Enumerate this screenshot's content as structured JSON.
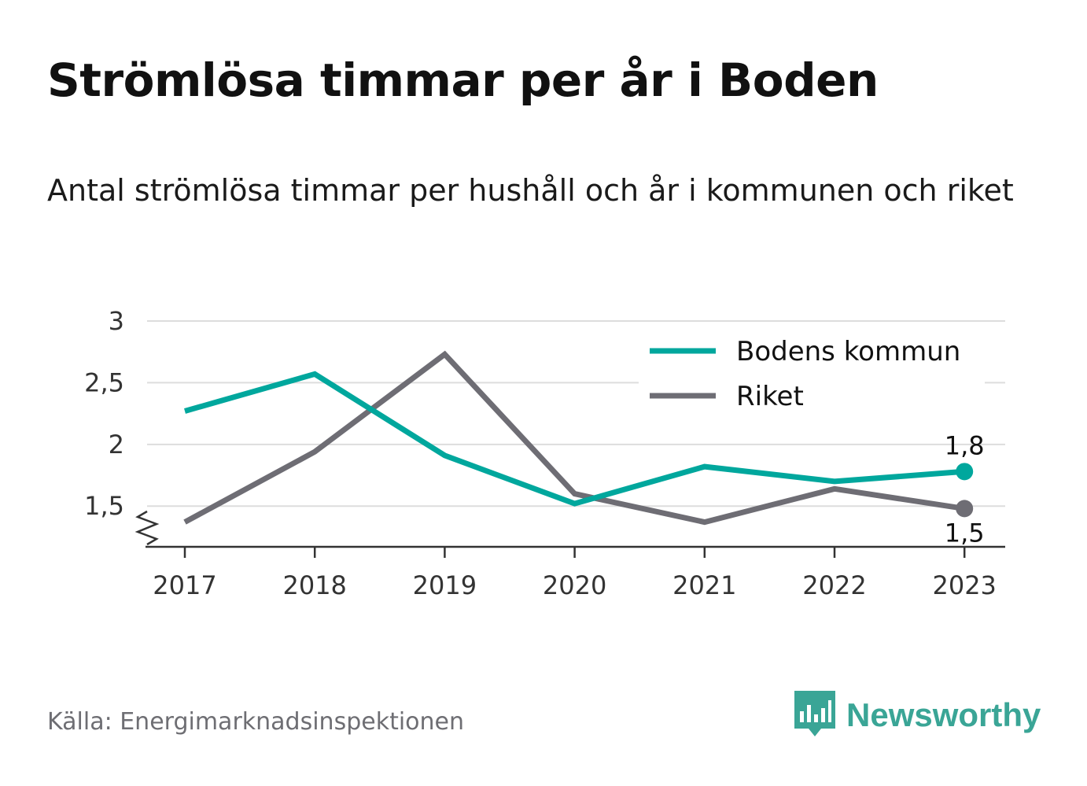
{
  "header": {
    "title": "Strömlösa timmar per år i Boden",
    "subtitle": "Antal strömlösa timmar per hushåll och år i kommunen och riket"
  },
  "footer": {
    "source": "Källa: Energimarknadsinspektionen",
    "brand": "Newsworthy",
    "brand_icon": "bar-chart-speech-bubble-icon"
  },
  "colors": {
    "bodens": "#00a79d",
    "riket": "#6e6d74",
    "grid": "#dddddd",
    "axis": "#333333",
    "brand": "#3aa596"
  },
  "chart_data": {
    "type": "line",
    "x": [
      "2017",
      "2018",
      "2019",
      "2020",
      "2021",
      "2022",
      "2023"
    ],
    "yticks": [
      1.5,
      2,
      2.5,
      3
    ],
    "ytick_labels": [
      "1,5",
      "2",
      "2,5",
      "3"
    ],
    "ylim": [
      1.17,
      3
    ],
    "y_axis_break": true,
    "grid": true,
    "legend_position": "top-right",
    "series": [
      {
        "name": "Bodens kommun",
        "values": [
          2.27,
          2.57,
          1.91,
          1.52,
          1.82,
          1.7,
          1.78
        ],
        "end_label": "1,8"
      },
      {
        "name": "Riket",
        "values": [
          1.37,
          1.94,
          2.73,
          1.6,
          1.37,
          1.64,
          1.48
        ],
        "end_label": "1,5"
      }
    ]
  }
}
